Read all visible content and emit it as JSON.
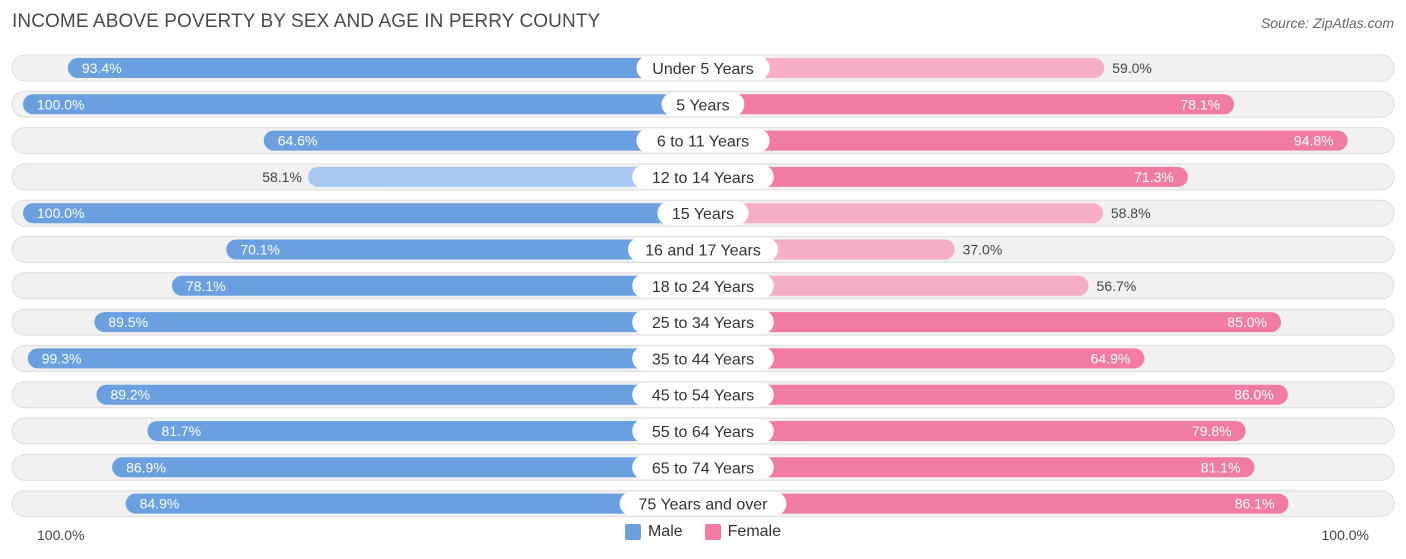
{
  "header": {
    "title": "INCOME ABOVE POVERTY BY SEX AND AGE IN PERRY COUNTY",
    "source": "Source: ZipAtlas.com"
  },
  "colors": {
    "male": "#6a9fe0",
    "male_light": "#a9c8ef",
    "female": "#f27ba1",
    "female_light": "#f8adc6"
  },
  "chart_data": {
    "type": "bar",
    "orientation": "horizontal-diverging",
    "title": "INCOME ABOVE POVERTY BY SEX AND AGE IN PERRY COUNTY",
    "categories": [
      "Under 5 Years",
      "5 Years",
      "6 to 11 Years",
      "12 to 14 Years",
      "15 Years",
      "16 and 17 Years",
      "18 to 24 Years",
      "25 to 34 Years",
      "35 to 44 Years",
      "45 to 54 Years",
      "55 to 64 Years",
      "65 to 74 Years",
      "75 Years and over"
    ],
    "series": [
      {
        "name": "Male",
        "values": [
          93.4,
          100.0,
          64.6,
          58.1,
          100.0,
          70.1,
          78.1,
          89.5,
          99.3,
          89.2,
          81.7,
          86.9,
          84.9
        ]
      },
      {
        "name": "Female",
        "values": [
          59.0,
          78.1,
          94.8,
          71.3,
          58.8,
          37.0,
          56.7,
          85.0,
          64.9,
          86.0,
          79.8,
          81.1,
          86.1
        ]
      }
    ],
    "value_labels": {
      "male": [
        "93.4%",
        "100.0%",
        "64.6%",
        "58.1%",
        "100.0%",
        "70.1%",
        "78.1%",
        "89.5%",
        "99.3%",
        "89.2%",
        "81.7%",
        "86.9%",
        "84.9%"
      ],
      "female": [
        "59.0%",
        "78.1%",
        "94.8%",
        "71.3%",
        "58.8%",
        "37.0%",
        "56.7%",
        "85.0%",
        "64.9%",
        "86.0%",
        "79.8%",
        "81.1%",
        "86.1%"
      ]
    },
    "xlim": [
      0,
      100
    ],
    "axis_labels": {
      "left": "100.0%",
      "right": "100.0%"
    },
    "legend": {
      "position": "bottom-center",
      "entries": [
        "Male",
        "Female"
      ]
    }
  }
}
